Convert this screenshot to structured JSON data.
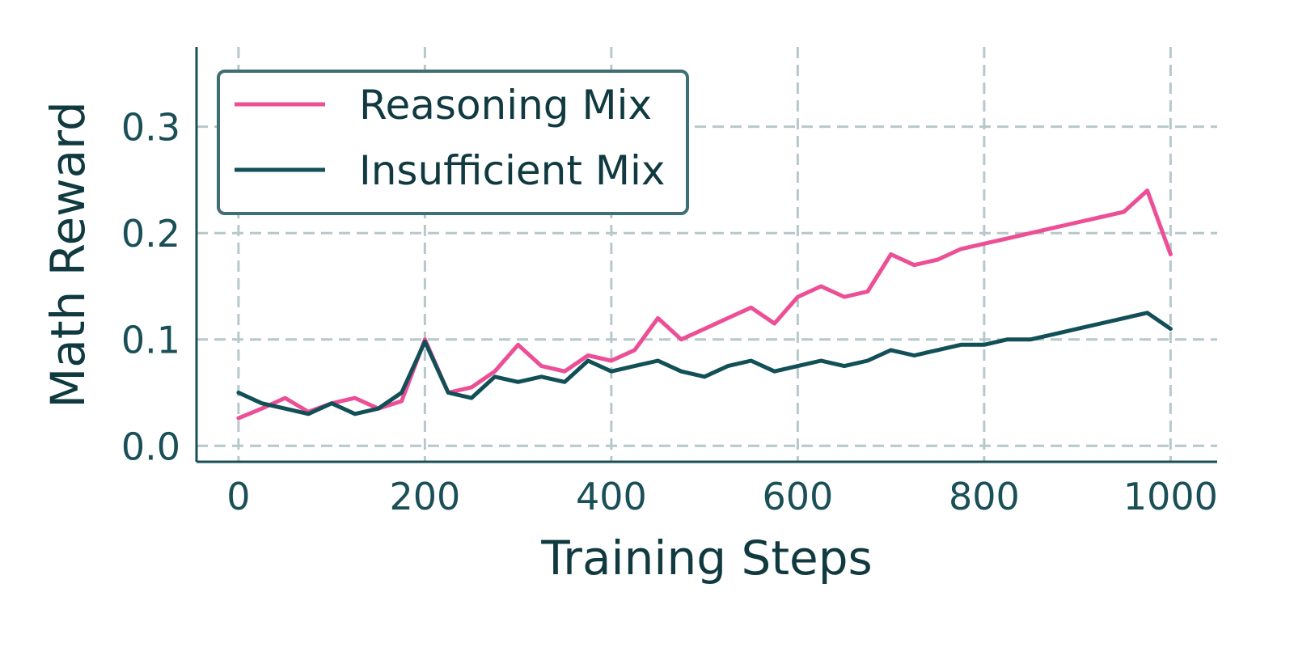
{
  "chart_data": {
    "type": "line",
    "title": "",
    "xlabel": "Training Steps",
    "ylabel": "Math Reward",
    "xlim": [
      -45,
      1050
    ],
    "ylim": [
      -0.015,
      0.375
    ],
    "xticks": [
      0,
      200,
      400,
      600,
      800,
      1000
    ],
    "xtick_labels": [
      "0",
      "200",
      "400",
      "600",
      "800",
      "1000"
    ],
    "yticks": [
      0.0,
      0.1,
      0.2,
      0.3
    ],
    "ytick_labels": [
      "0.0",
      "0.1",
      "0.2",
      "0.3"
    ],
    "grid": true,
    "legend_position": "top-left",
    "series": [
      {
        "name": "Reasoning Mix",
        "color": "#ec4f96",
        "x": [
          0,
          25,
          50,
          75,
          100,
          125,
          150,
          175,
          200,
          225,
          250,
          275,
          300,
          325,
          350,
          375,
          400,
          425,
          450,
          475,
          500,
          525,
          550,
          575,
          600,
          625,
          650,
          675,
          700,
          725,
          750,
          775,
          800,
          825,
          850,
          875,
          900,
          925,
          950,
          975,
          1000
        ],
        "y": [
          0.026,
          0.035,
          0.045,
          0.032,
          0.04,
          0.045,
          0.035,
          0.042,
          0.1,
          0.05,
          0.055,
          0.07,
          0.095,
          0.075,
          0.07,
          0.085,
          0.08,
          0.09,
          0.12,
          0.1,
          0.11,
          0.12,
          0.13,
          0.115,
          0.14,
          0.15,
          0.14,
          0.145,
          0.18,
          0.17,
          0.175,
          0.185,
          0.19,
          0.195,
          0.2,
          0.205,
          0.21,
          0.215,
          0.22,
          0.24,
          0.18
        ]
      },
      {
        "name": "Insufficient Mix",
        "color": "#124f57",
        "x": [
          0,
          25,
          50,
          75,
          100,
          125,
          150,
          175,
          200,
          225,
          250,
          275,
          300,
          325,
          350,
          375,
          400,
          425,
          450,
          475,
          500,
          525,
          550,
          575,
          600,
          625,
          650,
          675,
          700,
          725,
          750,
          775,
          800,
          825,
          850,
          875,
          900,
          925,
          950,
          975,
          1000
        ],
        "y": [
          0.05,
          0.04,
          0.035,
          0.03,
          0.04,
          0.03,
          0.035,
          0.05,
          0.098,
          0.05,
          0.045,
          0.065,
          0.06,
          0.065,
          0.06,
          0.08,
          0.07,
          0.075,
          0.08,
          0.07,
          0.065,
          0.075,
          0.08,
          0.07,
          0.075,
          0.08,
          0.075,
          0.08,
          0.09,
          0.085,
          0.09,
          0.095,
          0.095,
          0.1,
          0.1,
          0.105,
          0.11,
          0.115,
          0.12,
          0.125,
          0.11
        ]
      }
    ]
  }
}
